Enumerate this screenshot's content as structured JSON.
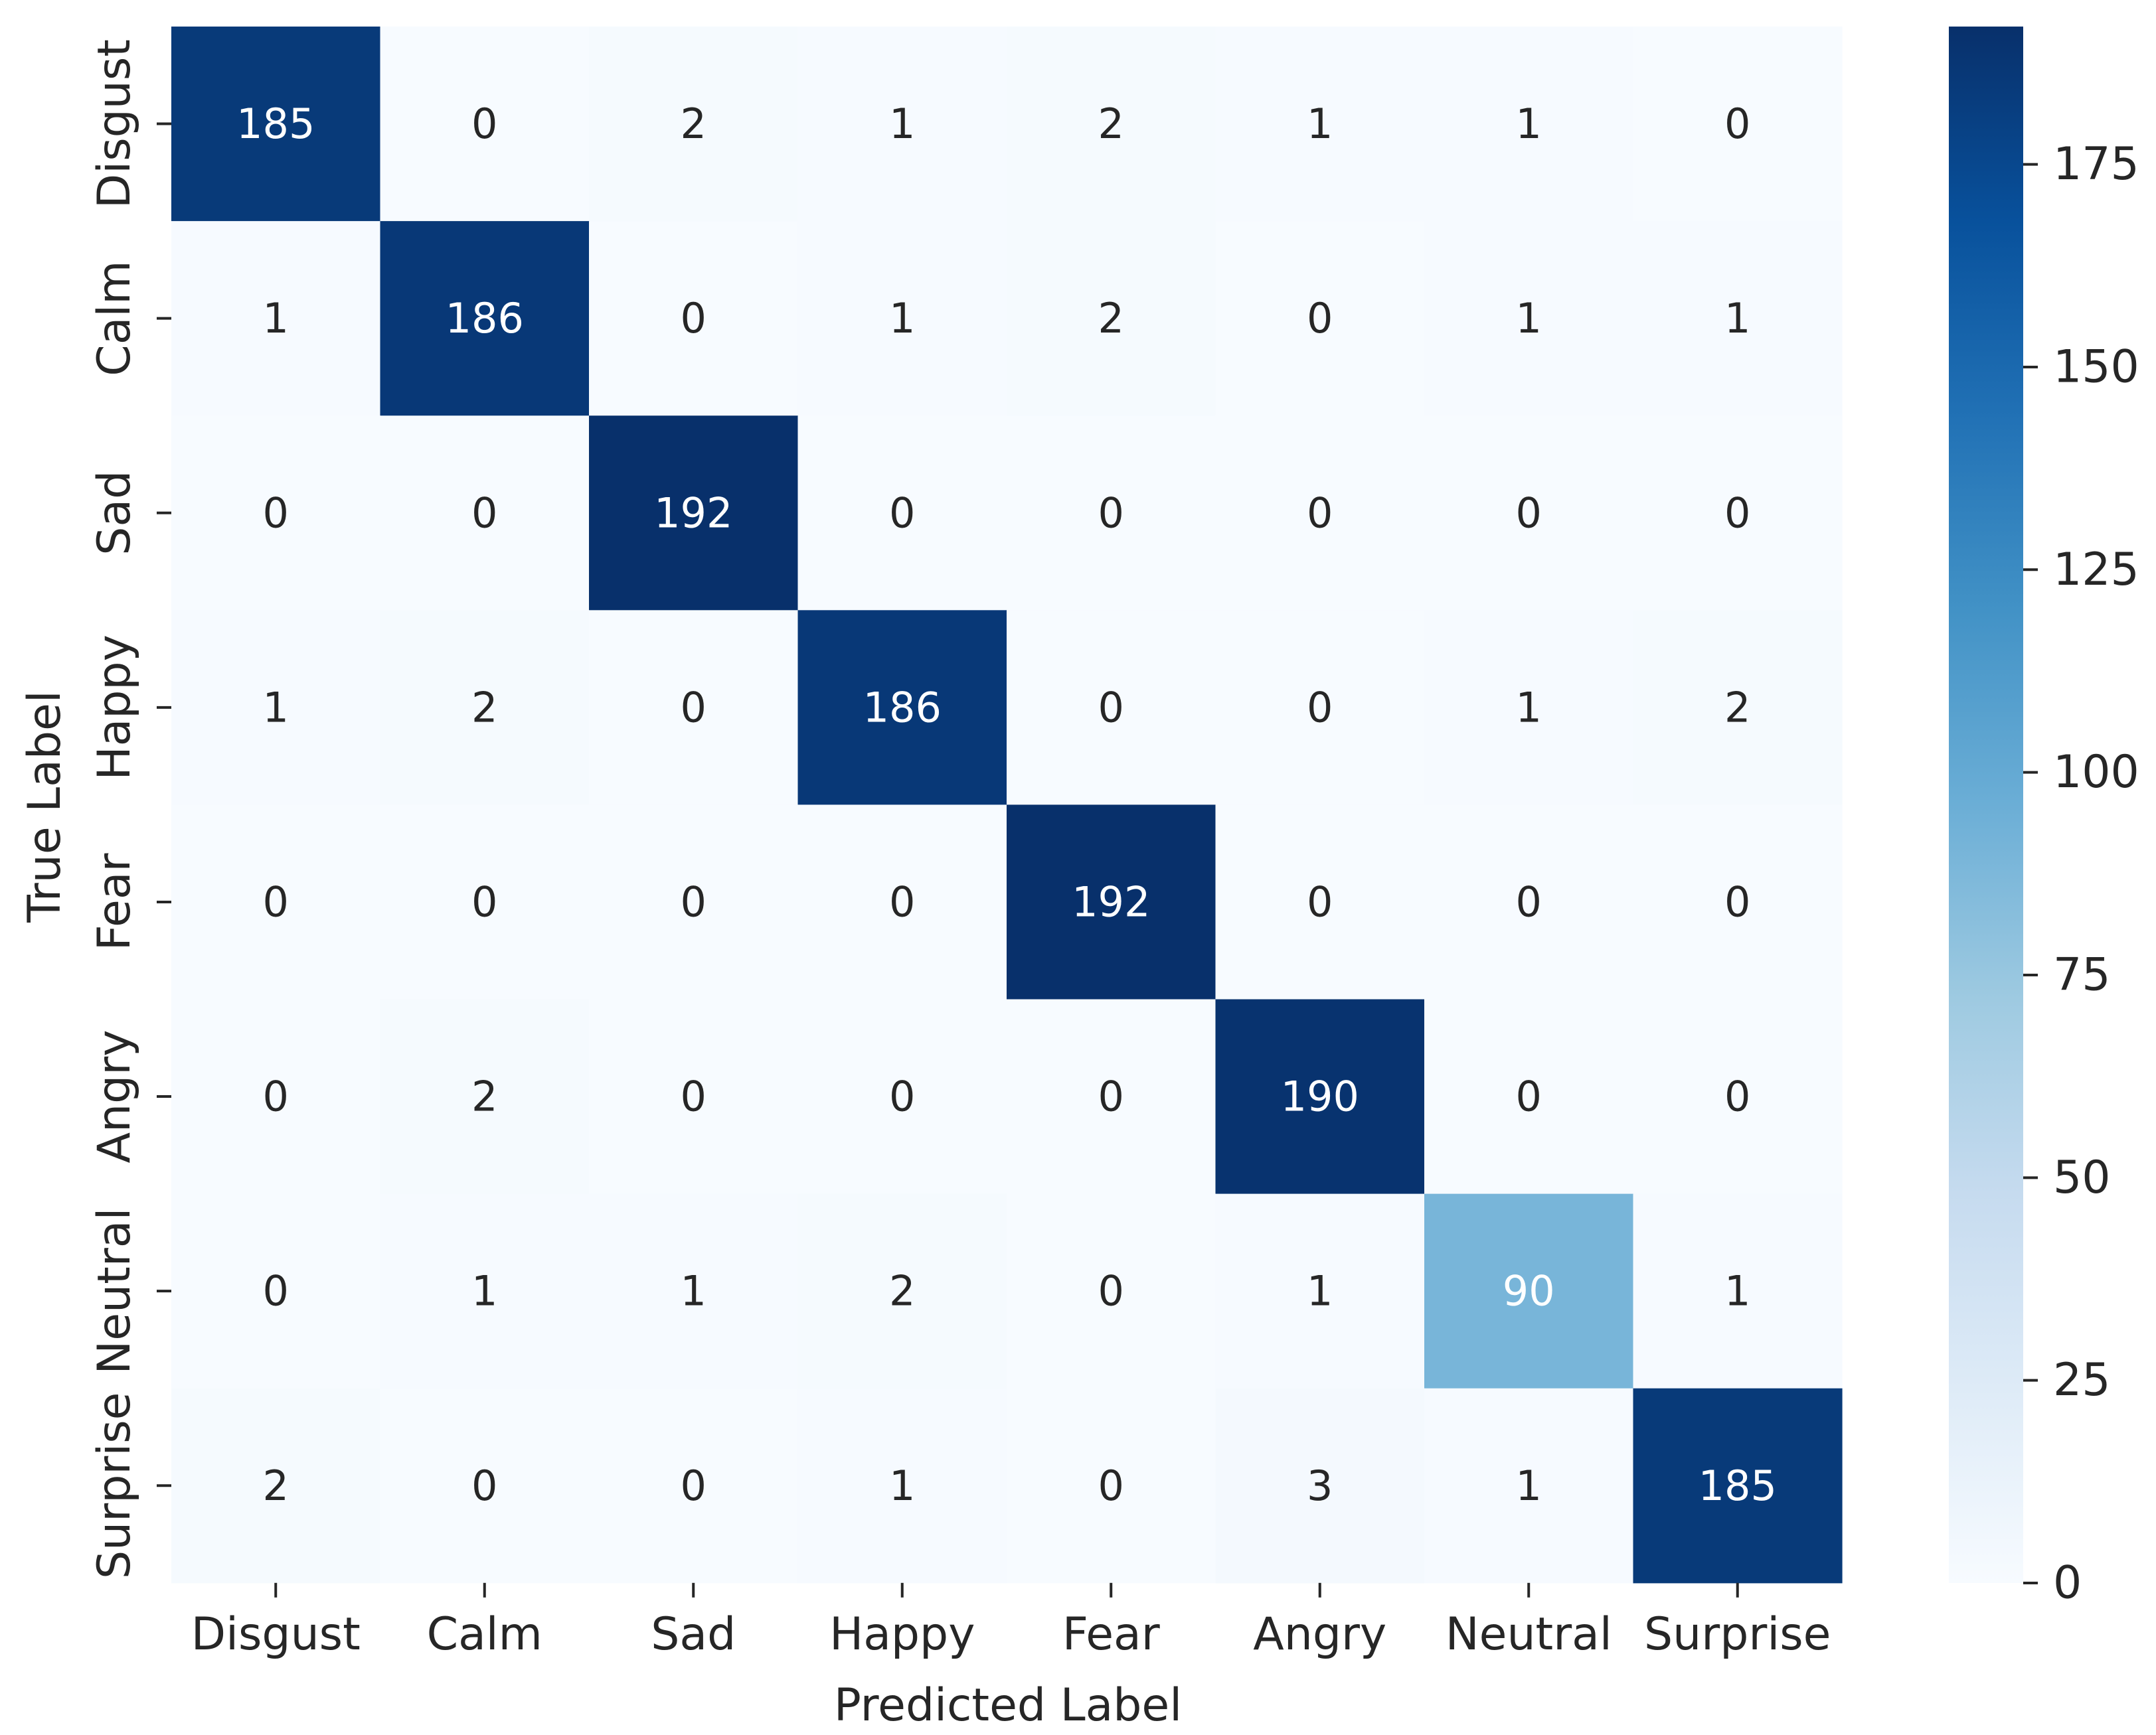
{
  "chart_data": {
    "type": "heatmap",
    "title": "",
    "xlabel": "Predicted Label",
    "ylabel": "True Label",
    "x_categories": [
      "Disgust",
      "Calm",
      "Sad",
      "Happy",
      "Fear",
      "Angry",
      "Neutral",
      "Surprise"
    ],
    "y_categories": [
      "Disgust",
      "Calm",
      "Sad",
      "Happy",
      "Fear",
      "Angry",
      "Neutral",
      "Surprise"
    ],
    "values": [
      [
        185,
        0,
        2,
        1,
        2,
        1,
        1,
        0
      ],
      [
        1,
        186,
        0,
        1,
        2,
        0,
        1,
        1
      ],
      [
        0,
        0,
        192,
        0,
        0,
        0,
        0,
        0
      ],
      [
        1,
        2,
        0,
        186,
        0,
        0,
        1,
        2
      ],
      [
        0,
        0,
        0,
        0,
        192,
        0,
        0,
        0
      ],
      [
        0,
        2,
        0,
        0,
        0,
        190,
        0,
        0
      ],
      [
        0,
        1,
        1,
        2,
        0,
        1,
        90,
        1
      ],
      [
        2,
        0,
        0,
        1,
        0,
        3,
        1,
        185
      ]
    ],
    "colorbar": {
      "range": [
        0,
        192
      ],
      "ticks": [
        "0",
        "25",
        "50",
        "75",
        "100",
        "125",
        "150",
        "175"
      ],
      "colormap": "Blues",
      "colors": [
        "#f7fbff",
        "#deebf7",
        "#c6dbef",
        "#9ecae1",
        "#6baed6",
        "#4292c6",
        "#2171b5",
        "#08519c",
        "#08306b"
      ]
    },
    "grid": false,
    "legend": "colorbar-right"
  }
}
